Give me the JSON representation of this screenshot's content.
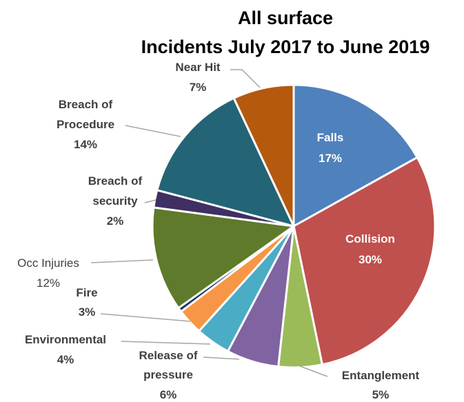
{
  "chart_data": {
    "type": "pie",
    "title_line1": "All surface",
    "title_line2": "Incidents July 2017 to June 2019",
    "start_angle_deg": 0,
    "direction": "clockwise",
    "slices": [
      {
        "label": "Falls",
        "value": 17,
        "pct_text": "17%",
        "color": "#4f81bd"
      },
      {
        "label": "Collision",
        "value": 30,
        "pct_text": "30%",
        "color": "#c0504d"
      },
      {
        "label": "Entanglement",
        "value": 5,
        "pct_text": "5%",
        "color": "#9bbb59"
      },
      {
        "label": "Release of pressure",
        "value": 6,
        "pct_text": "6%",
        "color": "#8064a2"
      },
      {
        "label": "Environmental",
        "value": 4,
        "pct_text": "4%",
        "color": "#4bacc6"
      },
      {
        "label": "Fire",
        "value": 3,
        "pct_text": "3%",
        "color": "#f79646"
      },
      {
        "label": "",
        "value": 0.5,
        "pct_text": "",
        "color": "#1f3864"
      },
      {
        "label": "Occ Injuries",
        "value": 12,
        "pct_text": "12%",
        "color": "#5e7a2a"
      },
      {
        "label": "Breach of security",
        "value": 2,
        "pct_text": "2%",
        "color": "#3f2f62"
      },
      {
        "label": "Breach of Procedure",
        "value": 14,
        "pct_text": "14%",
        "color": "#246477"
      },
      {
        "label": "Near Hit",
        "value": 7,
        "pct_text": "7%",
        "color": "#b5590f"
      }
    ]
  },
  "labels": {
    "falls": {
      "l1": "Falls",
      "l2": "17%"
    },
    "collision": {
      "l1": "Collision",
      "l2": "30%"
    },
    "entanglement": {
      "l1": "Entanglement",
      "l2": "5%"
    },
    "release": {
      "l1": "Release of",
      "l2": "pressure",
      "l3": "6%"
    },
    "environmental": {
      "l1": "Environmental",
      "l2": "4%"
    },
    "fire": {
      "l1": "Fire",
      "l2": "3%"
    },
    "occ": {
      "l1": "Occ Injuries",
      "l2": "12%"
    },
    "security": {
      "l1": "Breach of",
      "l2": "security",
      "l3": "2%"
    },
    "procedure": {
      "l1": "Breach of",
      "l2": "Procedure",
      "l3": "14%"
    },
    "nearhit": {
      "l1": "Near Hit",
      "l2": "7%"
    }
  }
}
